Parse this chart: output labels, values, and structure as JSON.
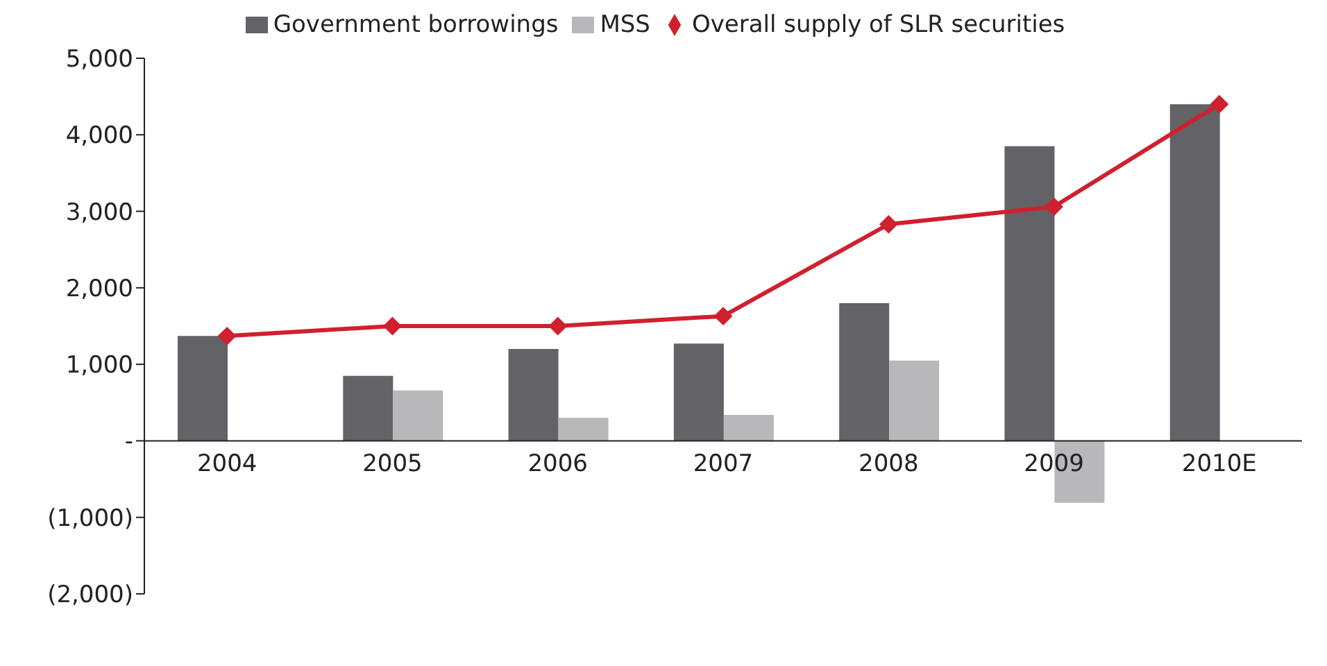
{
  "chart_data": {
    "type": "bar",
    "categories": [
      "2004",
      "2005",
      "2006",
      "2007",
      "2008",
      "2009",
      "2010E"
    ],
    "series": [
      {
        "name": "Government borrowings",
        "color": "#636266",
        "values": [
          1370,
          850,
          1200,
          1270,
          1800,
          3850,
          4400
        ]
      },
      {
        "name": "MSS",
        "color": "#b8b8ba",
        "values": [
          null,
          660,
          300,
          340,
          1050,
          -810,
          null
        ]
      },
      {
        "name": "Overall supply of SLR securities",
        "type": "line",
        "color": "#d0202e",
        "marker": "diamond",
        "values": [
          1370,
          1500,
          1500,
          1630,
          2830,
          3060,
          4400
        ]
      }
    ],
    "ylim": [
      -2000,
      5000
    ],
    "yticks": [
      {
        "value": -2000,
        "label": "(2,000)"
      },
      {
        "value": -1000,
        "label": "(1,000)"
      },
      {
        "value": 0,
        "label": "-"
      },
      {
        "value": 1000,
        "label": "1,000"
      },
      {
        "value": 2000,
        "label": "2,000"
      },
      {
        "value": 3000,
        "label": "3,000"
      },
      {
        "value": 4000,
        "label": "4,000"
      },
      {
        "value": 5000,
        "label": "5,000"
      }
    ],
    "grid": false,
    "legend": "top"
  }
}
